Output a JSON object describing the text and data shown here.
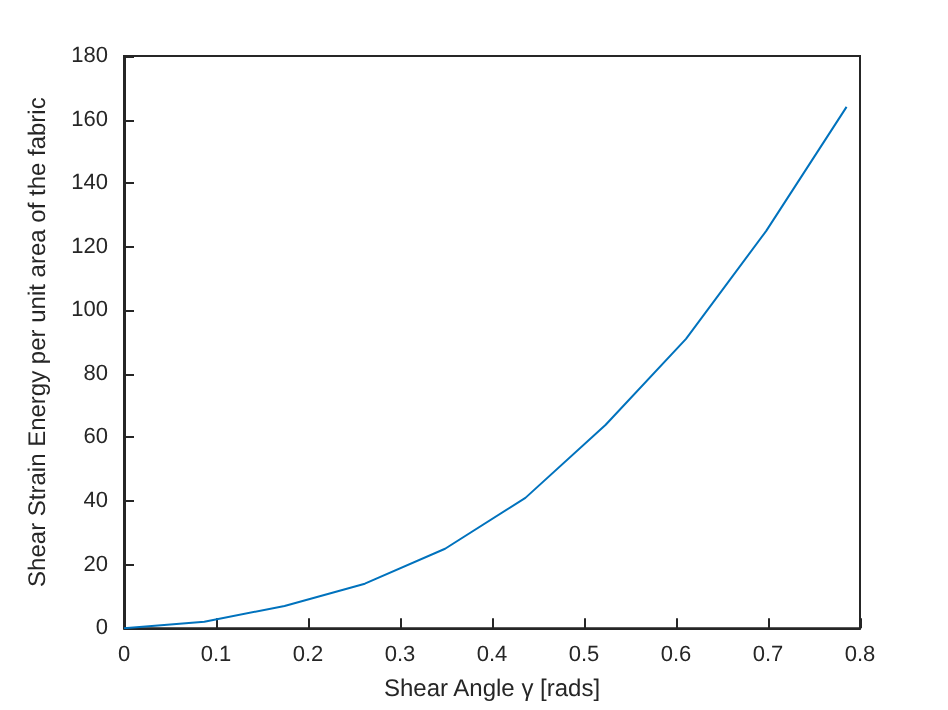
{
  "chart_data": {
    "type": "line",
    "xlabel": "Shear Angle γ [rads]",
    "ylabel": "Shear Strain Energy per unit area of the fabric",
    "x": [
      0,
      0.0873,
      0.1745,
      0.2618,
      0.349,
      0.4363,
      0.5236,
      0.6109,
      0.6981,
      0.7854
    ],
    "series": [
      {
        "color": "#0072bd",
        "values": [
          0,
          2,
          7,
          14,
          25,
          41,
          64,
          91,
          125,
          164
        ]
      }
    ],
    "xlim": [
      0,
      0.8
    ],
    "xticks": [
      0,
      0.1,
      0.2,
      0.3,
      0.4,
      0.5,
      0.6,
      0.7,
      0.8
    ],
    "ylim": [
      0,
      180
    ],
    "yticks": [
      0,
      20,
      40,
      60,
      80,
      100,
      120,
      140,
      160,
      180
    ]
  }
}
